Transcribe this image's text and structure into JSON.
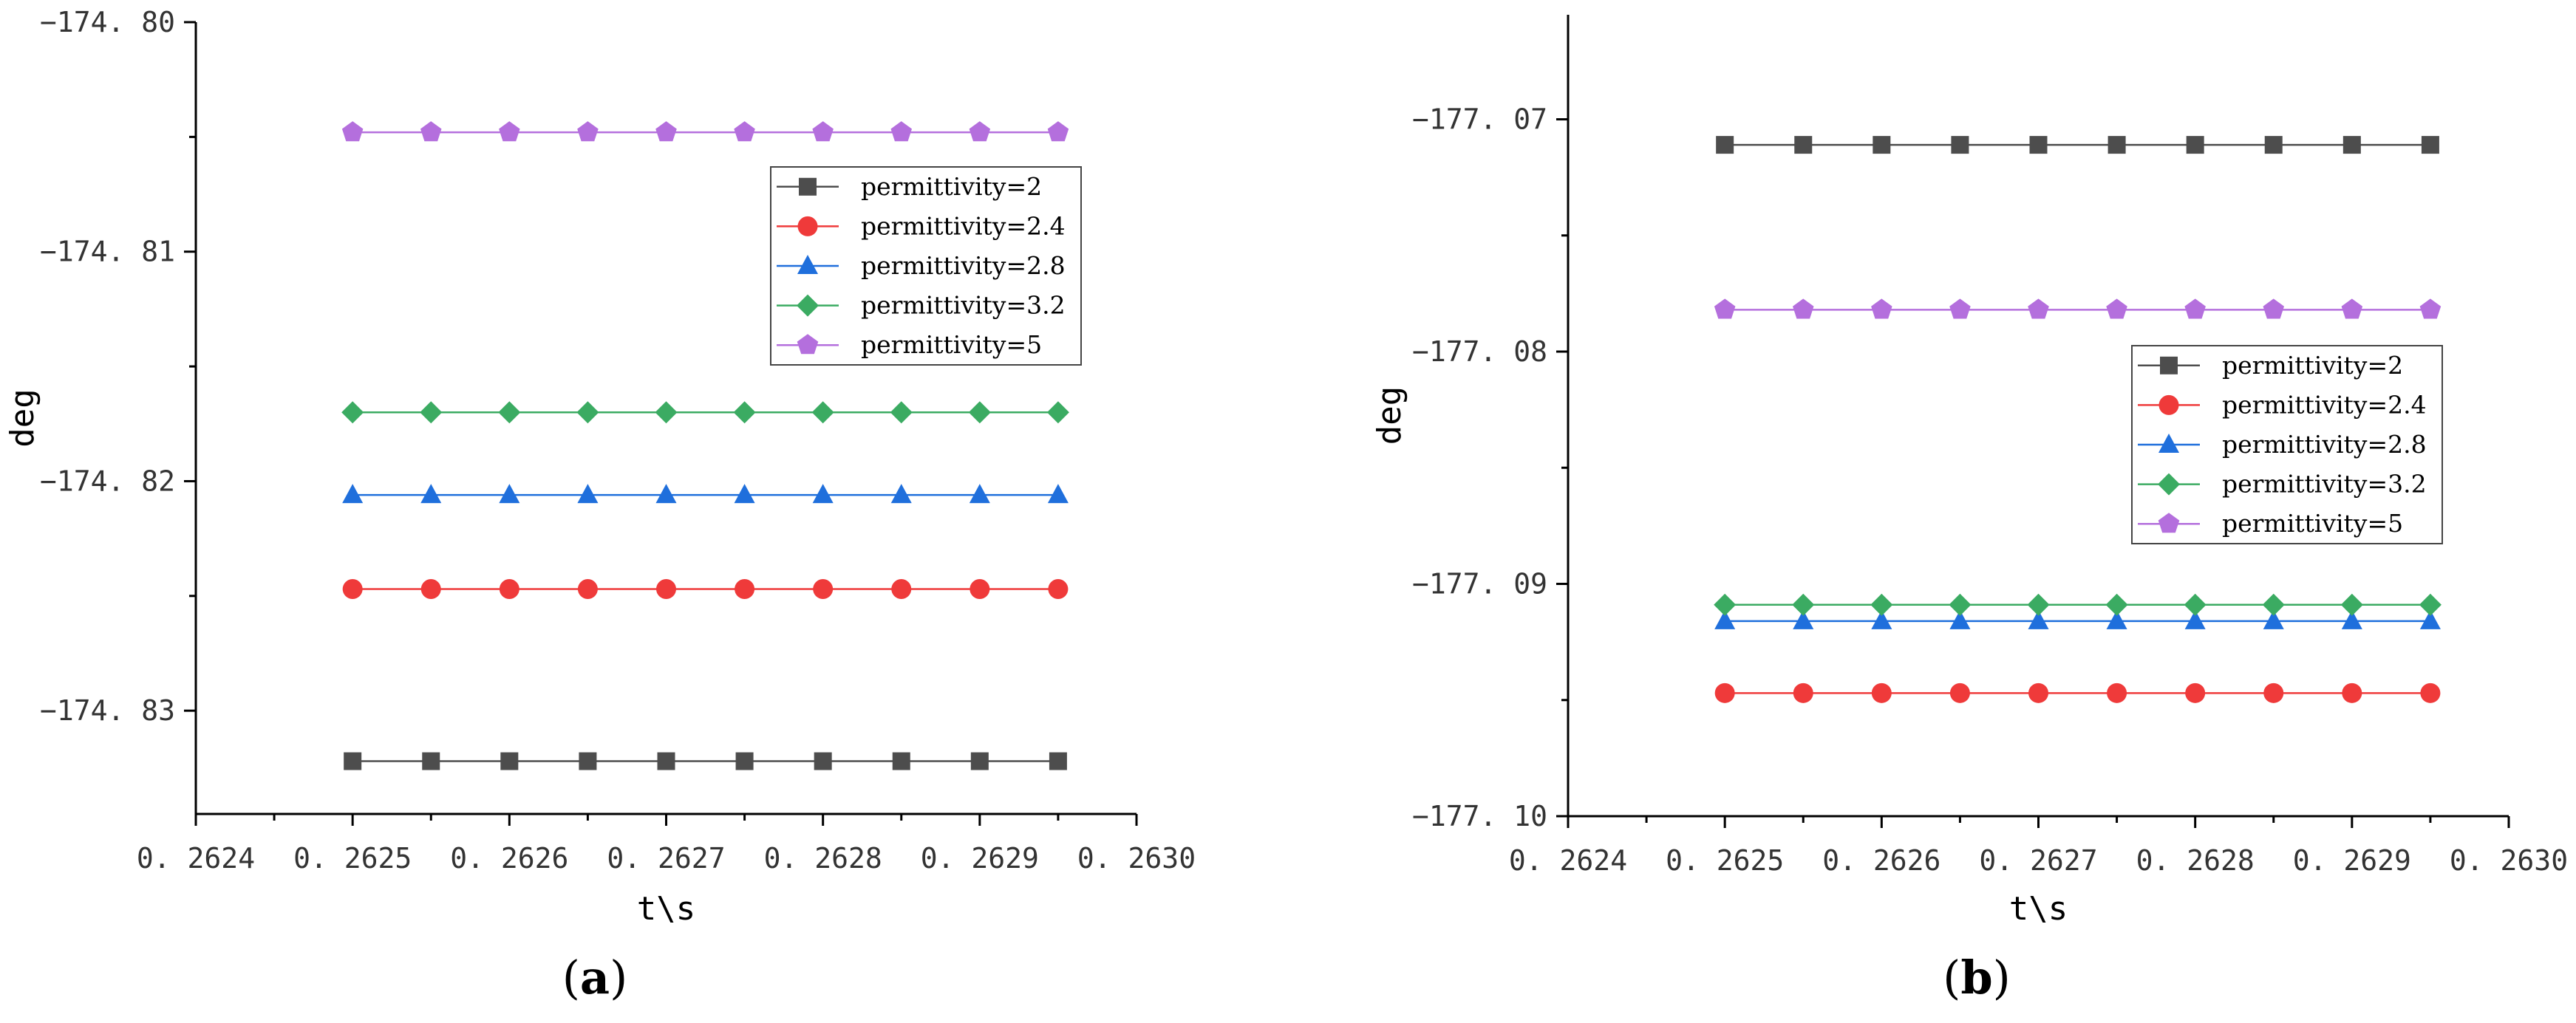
{
  "colors": {
    "permittivity=2": "#4d4d4d",
    "permittivity=2.4": "#ef3a3a",
    "permittivity=2.8": "#1f6fdc",
    "permittivity=3.2": "#3bab62",
    "permittivity=5": "#b46fdd"
  },
  "chart_data": [
    {
      "type": "line",
      "panel": "(a)",
      "panel_letter": "a",
      "xlabel": "t\\s",
      "ylabel": "deg",
      "xlim": [
        0.2624,
        0.263
      ],
      "ylim": [
        -174.8345,
        -174.8
      ],
      "xticks": [
        0.2624,
        0.2625,
        0.2626,
        0.2627,
        0.2628,
        0.2629,
        0.263
      ],
      "xtick_labels": [
        "0. 2624",
        "0. 2625",
        "0. 2626",
        "0. 2627",
        "0. 2628",
        "0. 2629",
        "0. 2630"
      ],
      "yticks": [
        -174.8,
        -174.81,
        -174.82,
        -174.83
      ],
      "ytick_labels": [
        "−174. 80",
        "−174. 81",
        "−174. 82",
        "−174. 83"
      ],
      "grid": false,
      "legend_position": "upper-right",
      "x": [
        0.2625,
        0.26255,
        0.2626,
        0.26265,
        0.2627,
        0.26275,
        0.2628,
        0.26285,
        0.2629,
        0.26295
      ],
      "series": [
        {
          "name": "permittivity=2",
          "marker": "square",
          "y": -174.8322
        },
        {
          "name": "permittivity=2.4",
          "marker": "circle",
          "y": -174.8247
        },
        {
          "name": "permittivity=2.8",
          "marker": "triangle",
          "y": -174.8206
        },
        {
          "name": "permittivity=3.2",
          "marker": "diamond",
          "y": -174.817
        },
        {
          "name": "permittivity=5",
          "marker": "pentagon",
          "y": -174.8048
        }
      ]
    },
    {
      "type": "line",
      "panel": "(b)",
      "panel_letter": "b",
      "xlabel": "t\\s",
      "ylabel": "deg",
      "xlim": [
        0.2624,
        0.263
      ],
      "ylim": [
        -177.1,
        -177.0655
      ],
      "xticks": [
        0.2624,
        0.2625,
        0.2626,
        0.2627,
        0.2628,
        0.2629,
        0.263
      ],
      "xtick_labels": [
        "0. 2624",
        "0. 2625",
        "0. 2626",
        "0. 2627",
        "0. 2628",
        "0. 2629",
        "0. 2630"
      ],
      "yticks": [
        -177.07,
        -177.08,
        -177.09,
        -177.1
      ],
      "ytick_labels": [
        "−177. 07",
        "−177. 08",
        "−177. 09",
        "−177. 10"
      ],
      "grid": false,
      "legend_position": "center-right",
      "x": [
        0.2625,
        0.26255,
        0.2626,
        0.26265,
        0.2627,
        0.26275,
        0.2628,
        0.26285,
        0.2629,
        0.26295
      ],
      "series": [
        {
          "name": "permittivity=2",
          "marker": "square",
          "y": -177.0711
        },
        {
          "name": "permittivity=2.4",
          "marker": "circle",
          "y": -177.0947
        },
        {
          "name": "permittivity=2.8",
          "marker": "triangle",
          "y": -177.0916
        },
        {
          "name": "permittivity=3.2",
          "marker": "diamond",
          "y": -177.0909
        },
        {
          "name": "permittivity=5",
          "marker": "pentagon",
          "y": -177.0782
        }
      ]
    }
  ]
}
